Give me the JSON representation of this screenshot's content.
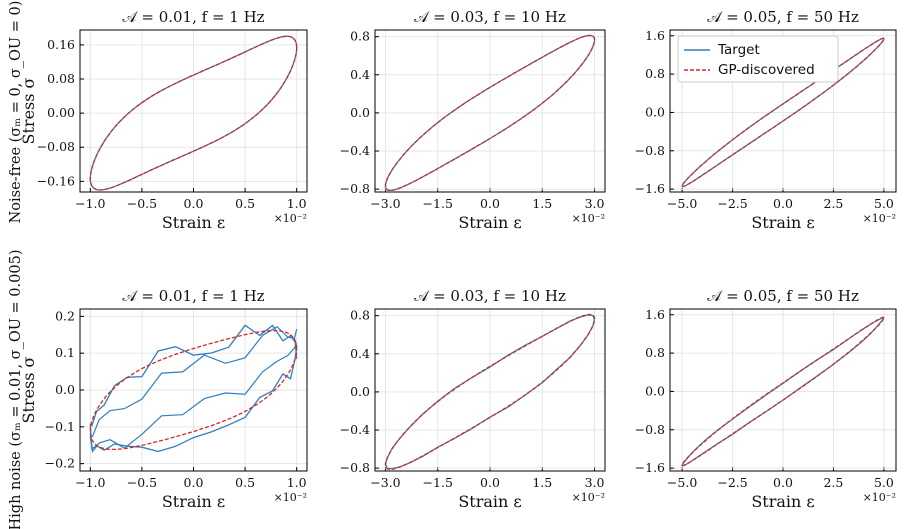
{
  "chart_data": [
    {
      "type": "line",
      "title": "𝒜 = 0.01,  f = 1 Hz",
      "xlabel": "Strain ε",
      "ylabel": "Stress σ",
      "x_multiplier": "×10⁻²",
      "xticks": [
        "−1.0",
        "−0.5",
        "0.0",
        "0.5",
        "1.0"
      ],
      "yticks": [
        "0.16",
        "0.08",
        "0.00",
        "−0.08",
        "−0.16"
      ],
      "xlim": [
        -1.1,
        1.1
      ],
      "ylim": [
        -0.185,
        0.195
      ],
      "amplitude": 1.0,
      "amp_y": 0.172,
      "width": 0.6,
      "skew": 0.45,
      "noise": 0,
      "series": [
        {
          "name": "Target",
          "color": "#2f7fc1"
        },
        {
          "name": "GP-discovered",
          "color": "#d62728"
        }
      ],
      "grid": true
    },
    {
      "type": "line",
      "title": "𝒜 = 0.03,  f = 10 Hz",
      "xlabel": "Strain ε",
      "x_multiplier": "×10⁻²",
      "xticks": [
        "−3.0",
        "−1.5",
        "0.0",
        "1.5",
        "3.0"
      ],
      "yticks": [
        "0.8",
        "0.4",
        "0.0",
        "−0.4",
        "−0.8"
      ],
      "xlim": [
        -3.3,
        3.3
      ],
      "ylim": [
        -0.83,
        0.87
      ],
      "amplitude": 3.0,
      "amp_y": 0.79,
      "width": 0.36,
      "skew": 0.2,
      "noise": 0,
      "series": [
        {
          "name": "Target",
          "color": "#2f7fc1"
        },
        {
          "name": "GP-discovered",
          "color": "#d62728"
        }
      ],
      "grid": true
    },
    {
      "type": "line",
      "title": "𝒜 = 0.05,  f = 50 Hz",
      "xlabel": "Strain ε",
      "x_multiplier": "×10⁻²",
      "xticks": [
        "−5.0",
        "−2.5",
        "0.0",
        "2.5",
        "5.0"
      ],
      "yticks": [
        "1.6",
        "0.8",
        "0.0",
        "−0.8",
        "−1.6"
      ],
      "xlim": [
        -5.6,
        5.6
      ],
      "ylim": [
        -1.66,
        1.72
      ],
      "amplitude": 5.0,
      "amp_y": 1.52,
      "width": 0.12,
      "skew": 0.1,
      "noise": 0,
      "series": [
        {
          "name": "Target",
          "color": "#2f7fc1"
        },
        {
          "name": "GP-discovered",
          "color": "#d62728"
        }
      ],
      "legend": {
        "position": "top-left",
        "entries": [
          "Target",
          "GP-discovered"
        ]
      },
      "grid": true
    },
    {
      "type": "line",
      "title": "𝒜 = 0.01,  f = 1 Hz",
      "xlabel": "Strain ε",
      "ylabel": "Stress σ",
      "x_multiplier": "×10⁻²",
      "xticks": [
        "−1.0",
        "−0.5",
        "0.0",
        "0.5",
        "1.0"
      ],
      "yticks": [
        "0.2",
        "0.1",
        "0.0",
        "−0.1",
        "−0.2"
      ],
      "xlim": [
        -1.1,
        1.1
      ],
      "ylim": [
        -0.22,
        0.22
      ],
      "amplitude": 1.0,
      "amp_y": 0.16,
      "width": 0.85,
      "skew": 0.35,
      "noise": 0.028,
      "series": [
        {
          "name": "Target",
          "color": "#2f7fc1"
        },
        {
          "name": "GP-discovered",
          "color": "#d62728"
        }
      ],
      "grid": true
    },
    {
      "type": "line",
      "title": "𝒜 = 0.03,  f = 10 Hz",
      "xlabel": "Strain ε",
      "x_multiplier": "×10⁻²",
      "xticks": [
        "−3.0",
        "−1.5",
        "0.0",
        "1.5",
        "3.0"
      ],
      "yticks": [
        "0.8",
        "0.4",
        "0.0",
        "−0.4",
        "−0.8"
      ],
      "xlim": [
        -3.3,
        3.3
      ],
      "ylim": [
        -0.83,
        0.87
      ],
      "amplitude": 3.0,
      "amp_y": 0.79,
      "width": 0.36,
      "skew": 0.2,
      "noise": 0.008,
      "series": [
        {
          "name": "Target",
          "color": "#2f7fc1"
        },
        {
          "name": "GP-discovered",
          "color": "#d62728"
        }
      ],
      "grid": true
    },
    {
      "type": "line",
      "title": "𝒜 = 0.05,  f = 50 Hz",
      "xlabel": "Strain ε",
      "x_multiplier": "×10⁻²",
      "xticks": [
        "−5.0",
        "−2.5",
        "0.0",
        "2.5",
        "5.0"
      ],
      "yticks": [
        "1.6",
        "0.8",
        "0.0",
        "−0.8",
        "−1.6"
      ],
      "xlim": [
        -5.6,
        5.6
      ],
      "ylim": [
        -1.66,
        1.72
      ],
      "amplitude": 5.0,
      "amp_y": 1.52,
      "width": 0.12,
      "skew": 0.1,
      "noise": 0.012,
      "series": [
        {
          "name": "Target",
          "color": "#2f7fc1"
        },
        {
          "name": "GP-discovered",
          "color": "#d62728"
        }
      ],
      "grid": true
    }
  ],
  "row_labels": [
    "Noise-free (σₘ = 0, σ_OU = 0)",
    "High noise (σₘ = 0.01, σ_OU = 0.005)"
  ]
}
